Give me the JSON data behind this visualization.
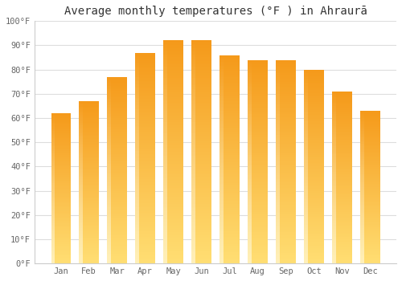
{
  "months": [
    "Jan",
    "Feb",
    "Mar",
    "Apr",
    "May",
    "Jun",
    "Jul",
    "Aug",
    "Sep",
    "Oct",
    "Nov",
    "Dec"
  ],
  "values": [
    62,
    67,
    77,
    87,
    92,
    92,
    86,
    84,
    84,
    80,
    71,
    63
  ],
  "title": "Average monthly temperatures (°F ) in Ahraurā",
  "ylim": [
    0,
    100
  ],
  "yticks": [
    0,
    10,
    20,
    30,
    40,
    50,
    60,
    70,
    80,
    90,
    100
  ],
  "ytick_labels": [
    "0°F",
    "10°F",
    "20°F",
    "30°F",
    "40°F",
    "50°F",
    "60°F",
    "70°F",
    "80°F",
    "90°F",
    "100°F"
  ],
  "background_color": "#ffffff",
  "grid_color": "#dddddd",
  "title_fontsize": 10,
  "bar_color_bottom": "#FFD966",
  "bar_color_top": "#F5A623",
  "bar_left_highlight": "#FFEC99"
}
